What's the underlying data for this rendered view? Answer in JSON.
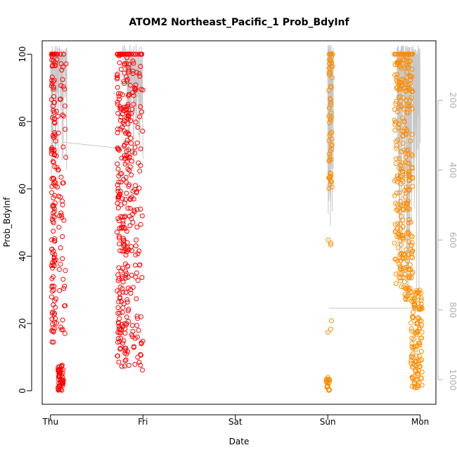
{
  "chart_data": {
    "type": "scatter",
    "title": "ATOM2 Northeast_Pacific_1 Prob_BdyInf",
    "xlabel": "Date",
    "ylabel": "Prob_BdyInf",
    "x_tick_labels": [
      "Thu",
      "Fri",
      "Sat",
      "Sun",
      "Mon"
    ],
    "xlim_days": [
      -0.09,
      4.17
    ],
    "ylim": [
      -4,
      104
    ],
    "y_ticks": [
      0,
      20,
      40,
      60,
      80,
      100
    ],
    "y2_ticks": [
      200,
      400,
      600,
      800,
      1000
    ],
    "y2lim": [
      1070,
      30
    ],
    "y2_color": "#b0b0b0",
    "marker": "open-circle",
    "series": [
      {
        "color": "#ff0000",
        "clusters": [
          {
            "x": [
              0.01,
              0.05
            ],
            "y": [
              14,
              100
            ],
            "n": 120
          },
          {
            "x": [
              0.05,
              0.17
            ],
            "y": [
              16,
              100
            ],
            "n": 70
          },
          {
            "x": [
              0.08,
              0.14
            ],
            "y": [
              0,
              8
            ],
            "n": 50
          },
          {
            "x": [
              0.72,
              0.85
            ],
            "y": [
              7,
              100
            ],
            "n": 260
          },
          {
            "x": [
              0.85,
              1.0
            ],
            "y": [
              6,
              100
            ],
            "n": 120
          }
        ]
      },
      {
        "color": "#ff8c00",
        "clusters": [
          {
            "x": [
              2.98,
              3.02
            ],
            "y": [
              0,
              4
            ],
            "n": 20
          },
          {
            "x": [
              3.01,
              3.05
            ],
            "y": [
              60,
              100
            ],
            "n": 60
          },
          {
            "x": [
              3.0,
              3.04
            ],
            "y": [
              17,
              52
            ],
            "n": 6
          },
          {
            "x": [
              3.72,
              3.92
            ],
            "y": [
              27,
              100
            ],
            "n": 320
          },
          {
            "x": [
              3.9,
              4.02
            ],
            "y": [
              0,
              30
            ],
            "n": 120
          }
        ]
      }
    ],
    "depth_trace": {
      "color": "#c8c8c8",
      "segments": [
        {
          "x": [
            0.0,
            0.18
          ],
          "depth": [
            40,
            420
          ],
          "n": 60
        },
        {
          "x": [
            0.78,
            1.0
          ],
          "depth": [
            40,
            420
          ],
          "n": 40
        },
        {
          "x": [
            3.0,
            3.06
          ],
          "depth": [
            40,
            560
          ],
          "n": 40
        },
        {
          "x": [
            3.75,
            4.0
          ],
          "depth": [
            40,
            790
          ],
          "n": 80
        }
      ],
      "links": [
        {
          "x": [
            0.13,
            1.01
          ],
          "depth": [
            320,
            345
          ]
        },
        {
          "x": [
            3.01,
            3.99
          ],
          "depth": [
            795,
            795
          ]
        }
      ]
    }
  }
}
